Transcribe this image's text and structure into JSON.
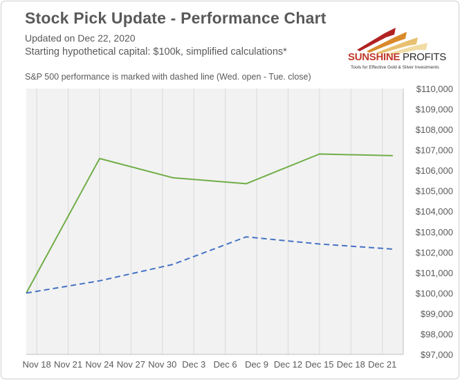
{
  "header": {
    "title": "Stock Pick Update - Performance Chart",
    "updated": "Updated on Dec 22, 2020",
    "capital_note": "Starting hypothetical capital: $100k, simplified calculations*",
    "sp500_note": "S&P 500 performance is marked with dashed line (Wed. open - Tue. close)"
  },
  "logo": {
    "name_bold": "SUNSHINE",
    "name_light": " PROFITS",
    "tagline": "Tools for Effective Gold & Silver Investments",
    "icon": "rising-arrows-logo"
  },
  "colors": {
    "portfolio_line": "#70ad47",
    "sp500_line": "#4472c4",
    "plot_bg": "#f2f2f2",
    "grid": "#d9d9d9",
    "text": "#595959"
  },
  "chart_data": {
    "type": "line",
    "x_tick_labels": [
      "Nov 18",
      "Nov 21",
      "Nov 24",
      "Nov 27",
      "Nov 30",
      "Dec 3",
      "Dec 6",
      "Dec 9",
      "Dec 12",
      "Dec 15",
      "Dec 18",
      "Dec 21"
    ],
    "x_range": [
      "Nov 17",
      "Dec 23"
    ],
    "ylim": [
      97000,
      110000
    ],
    "y_tick_step": 1000,
    "y_tick_prefix": "$",
    "grid": "vertical",
    "series": [
      {
        "style": "solid",
        "color": "#70ad47",
        "points": [
          {
            "x": "Nov 17",
            "y": 100000
          },
          {
            "x": "Nov 24",
            "y": 106580
          },
          {
            "x": "Dec 1",
            "y": 105640
          },
          {
            "x": "Dec 8",
            "y": 105350
          },
          {
            "x": "Dec 15",
            "y": 106800
          },
          {
            "x": "Dec 22",
            "y": 106720
          }
        ]
      },
      {
        "style": "dashed",
        "color": "#4472c4",
        "points": [
          {
            "x": "Nov 17",
            "y": 100000
          },
          {
            "x": "Nov 24",
            "y": 100600
          },
          {
            "x": "Dec 1",
            "y": 101400
          },
          {
            "x": "Dec 8",
            "y": 102750
          },
          {
            "x": "Dec 15",
            "y": 102400
          },
          {
            "x": "Dec 22",
            "y": 102150
          }
        ]
      }
    ]
  }
}
